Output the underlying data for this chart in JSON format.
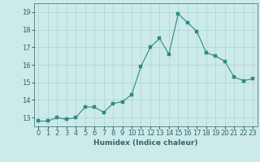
{
  "xlabel": "Humidex (Indice chaleur)",
  "x_values": [
    0,
    1,
    2,
    3,
    4,
    5,
    6,
    7,
    8,
    9,
    10,
    11,
    12,
    13,
    14,
    15,
    16,
    17,
    18,
    19,
    20,
    21,
    22,
    23
  ],
  "y_values": [
    12.8,
    12.8,
    13.0,
    12.9,
    13.0,
    13.6,
    13.6,
    13.3,
    13.8,
    13.9,
    14.3,
    15.9,
    17.0,
    17.5,
    16.6,
    18.9,
    18.4,
    17.9,
    16.7,
    16.5,
    16.2,
    15.3,
    15.1,
    15.2
  ],
  "line_color": "#2e8b7a",
  "marker_color": "#2e8b7a",
  "bg_color": "#cceaea",
  "grid_color": "#aad4d4",
  "ylim_min": 12.5,
  "ylim_max": 19.5,
  "yticks": [
    13,
    14,
    15,
    16,
    17,
    18,
    19
  ],
  "tick_label_color": "#336666",
  "axis_label_color": "#336666",
  "font_size_axis": 6.5,
  "font_size_tick": 6.0
}
